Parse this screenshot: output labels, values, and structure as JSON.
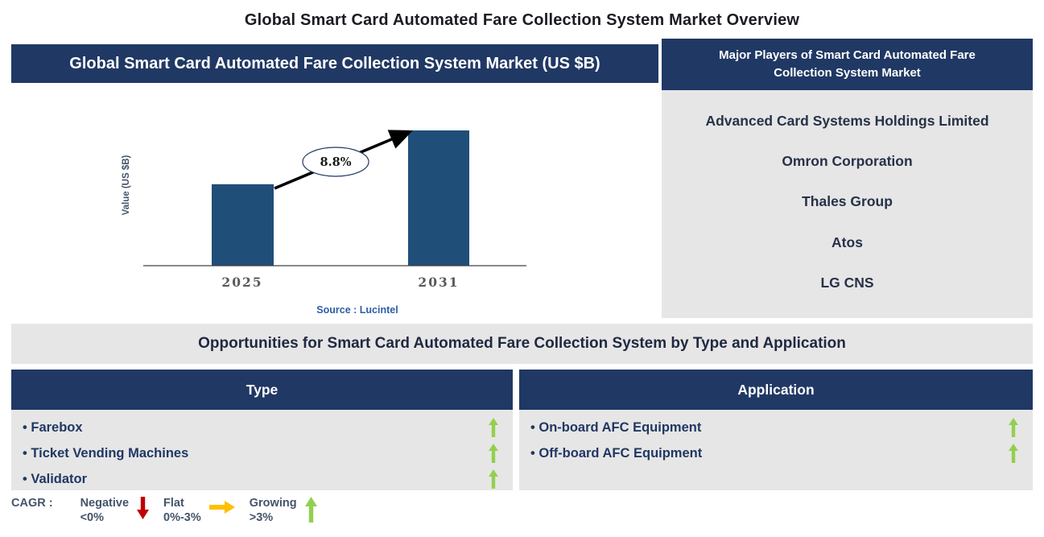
{
  "page_title": "Global Smart Card Automated Fare Collection System Market Overview",
  "colors": {
    "navy_header": "#203864",
    "bar_blue": "#1F4E79",
    "panel_gray": "#E7E6E6",
    "negative_red": "#C00000",
    "flat_yellow": "#FFC000",
    "growing_green": "#92D050",
    "source_blue": "#2B5EA7"
  },
  "chart_panel": {
    "header": "Global Smart Card Automated Fare Collection System Market (US $B)",
    "ylabel": "Value (US $B)",
    "cagr_label": "8.8%",
    "x_labels": [
      "2025",
      "2031"
    ],
    "source": "Source : Lucintel"
  },
  "chart_data": {
    "type": "bar",
    "title": "Global Smart Card Automated Fare Collection System Market (US $B)",
    "categories": [
      "2025",
      "2031"
    ],
    "values": [
      1.0,
      1.66
    ],
    "values_note": "value axis unlabeled; relative bar heights shown, 2031 ≈ 1.66× 2025 (implied by 8.8% CAGR over 2025-2031)",
    "cagr": "8.8%",
    "ylabel": "Value (US $B)",
    "xlabel": "",
    "source": "Source : Lucintel",
    "grid": false,
    "bar_color": "#1F4E79"
  },
  "players_panel": {
    "header": "Major Players of Smart Card Automated Fare Collection System Market",
    "players": [
      "Advanced Card Systems Holdings Limited",
      "Omron Corporation",
      "Thales Group",
      "Atos",
      "LG CNS"
    ]
  },
  "opportunities": {
    "title": "Opportunities for Smart Card Automated Fare Collection System by Type and Application",
    "tables": [
      {
        "header": "Type",
        "items": [
          {
            "label": "• Farebox",
            "trend": "growing"
          },
          {
            "label": "• Ticket Vending Machines",
            "trend": "growing"
          },
          {
            "label": "• Validator",
            "trend": "growing"
          }
        ]
      },
      {
        "header": "Application",
        "items": [
          {
            "label": "• On-board AFC Equipment",
            "trend": "growing"
          },
          {
            "label": "• Off-board AFC Equipment",
            "trend": "growing"
          }
        ]
      }
    ]
  },
  "legend": {
    "title": "CAGR :",
    "entries": [
      {
        "label": "Negative",
        "range": "<0%",
        "direction": "down",
        "color": "#C00000"
      },
      {
        "label": "Flat",
        "range": "0%-3%",
        "direction": "right",
        "color": "#FFC000"
      },
      {
        "label": "Growing",
        "range": ">3%",
        "direction": "up",
        "color": "#92D050"
      }
    ]
  }
}
